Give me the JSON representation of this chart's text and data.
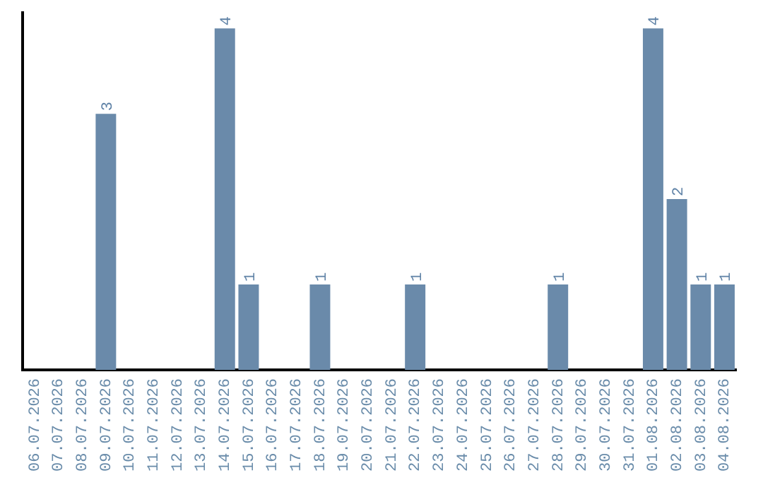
{
  "chart_data": {
    "type": "bar",
    "categories": [
      "06.07.2026",
      "07.07.2026",
      "08.07.2026",
      "09.07.2026",
      "10.07.2026",
      "11.07.2026",
      "12.07.2026",
      "13.07.2026",
      "14.07.2026",
      "15.07.2026",
      "16.07.2026",
      "17.07.2026",
      "18.07.2026",
      "19.07.2026",
      "20.07.2026",
      "21.07.2026",
      "22.07.2026",
      "23.07.2026",
      "24.07.2026",
      "25.07.2026",
      "26.07.2026",
      "27.07.2026",
      "28.07.2026",
      "29.07.2026",
      "30.07.2026",
      "31.07.2026",
      "01.08.2026",
      "02.08.2026",
      "03.08.2026",
      "04.08.2026"
    ],
    "values": [
      0,
      0,
      0,
      3,
      0,
      0,
      0,
      0,
      4,
      1,
      0,
      0,
      1,
      0,
      0,
      0,
      1,
      0,
      0,
      0,
      0,
      0,
      1,
      0,
      0,
      0,
      4,
      2,
      1,
      1
    ],
    "value_labels": [
      null,
      null,
      null,
      "3",
      null,
      null,
      null,
      null,
      "4",
      "1",
      null,
      null,
      "1",
      null,
      null,
      null,
      "1",
      null,
      null,
      null,
      null,
      null,
      "1",
      null,
      null,
      null,
      "4",
      "2",
      "1",
      "1"
    ],
    "color": "#6a8aaa",
    "ylim": [
      0,
      4.2
    ],
    "tick_labels": "x",
    "grid": false,
    "legend": false
  }
}
